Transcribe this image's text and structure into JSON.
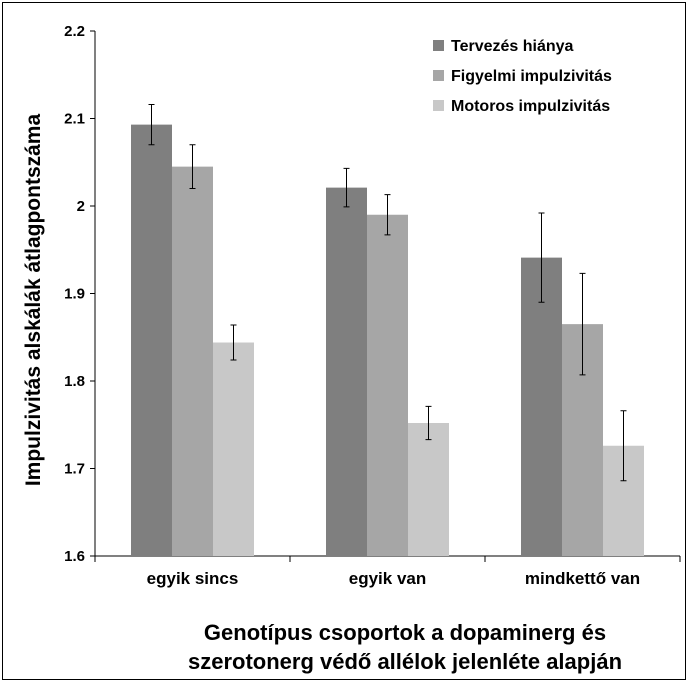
{
  "chart_data": {
    "type": "bar",
    "categories": [
      "egyik sincs",
      "egyik van",
      "mindkettő van"
    ],
    "series": [
      {
        "name": "Tervezés hiánya",
        "values": [
          2.093,
          2.021,
          1.941
        ],
        "errors": [
          0.023,
          0.022,
          0.051
        ],
        "color": "#7f7f7f"
      },
      {
        "name": "Figyelmi impulzivitás",
        "values": [
          2.045,
          1.99,
          1.865
        ],
        "errors": [
          0.025,
          0.023,
          0.058
        ],
        "color": "#a6a6a6"
      },
      {
        "name": "Motoros impulzivitás",
        "values": [
          1.844,
          1.752,
          1.726
        ],
        "errors": [
          0.02,
          0.019,
          0.04
        ],
        "color": "#c8c8c8"
      }
    ],
    "ylim": [
      1.6,
      2.2
    ],
    "yticks": [
      "1.6",
      "1.7",
      "1.8",
      "1.9",
      "2",
      "2.1",
      "2.2"
    ],
    "ylabel": "Impulzivitás alskálák átlagpontszáma",
    "xlabel_lines": [
      "Genotípus csoportok a dopaminerg és",
      "szerotonerg védő allélok jelenléte alapján"
    ],
    "legend_position": "top-right",
    "grid": false
  }
}
